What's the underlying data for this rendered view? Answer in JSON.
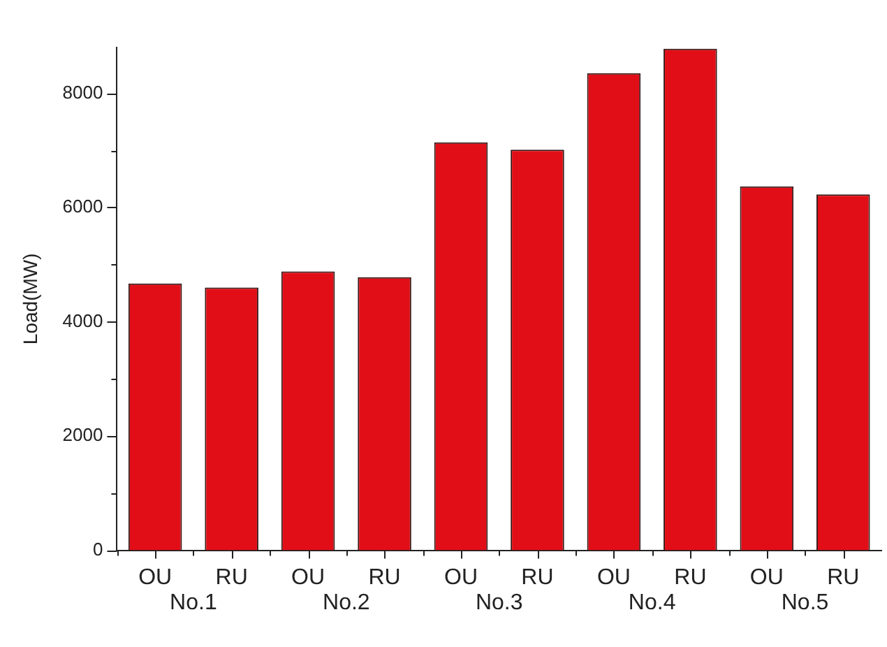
{
  "chart_data": {
    "type": "bar",
    "ylabel": "Load(MW)",
    "categories": [
      "OU",
      "RU",
      "OU",
      "RU",
      "OU",
      "RU",
      "OU",
      "RU",
      "OU",
      "RU"
    ],
    "values": [
      4670,
      4600,
      4880,
      4780,
      7140,
      7010,
      8350,
      8780,
      6370,
      6230
    ],
    "color": "#e20e17",
    "ylim": [
      0,
      8800
    ],
    "yticks": [
      0,
      {
        "value": 1000,
        "label": null
      },
      2000,
      {
        "value": 3000,
        "label": null
      },
      4000,
      {
        "value": 5000,
        "label": null
      },
      6000,
      {
        "value": 7000,
        "label": null
      },
      8000
    ],
    "annotations": [
      "No.1",
      "No.2",
      "No.3",
      "No.4",
      "No.5"
    ],
    "grid": false,
    "legend": false
  }
}
